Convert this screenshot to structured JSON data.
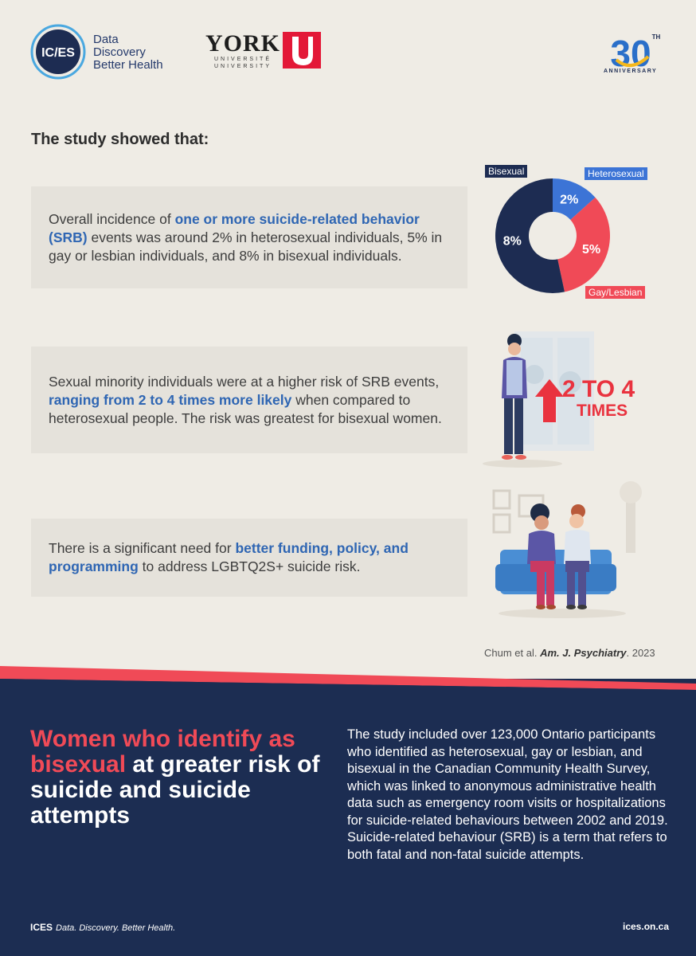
{
  "header": {
    "ices_badge": "IC/ES",
    "ices_tagline": [
      "Data",
      "Discovery",
      "Better Health"
    ],
    "york_word": "YORK",
    "york_sub": [
      "UNIVERSITÉ",
      "UNIVERSITY"
    ],
    "anniversary_number": "30",
    "anniversary_suffix": "TH",
    "anniversary_label": "ANNIVERSARY"
  },
  "study_title": "The study showed that:",
  "findings": [
    {
      "pre": "Overall incidence of ",
      "highlight": "one or more suicide-related behavior (SRB)",
      "post": " events was around 2% in heterosexual individuals, 5% in gay or lesbian individuals, and 8% in bisexual individuals."
    },
    {
      "pre": "Sexual minority individuals were at a higher risk of SRB events, ",
      "highlight": "ranging from 2 to 4 times more likely",
      "post": " when compared to heterosexual people. The risk was greatest for bisexual women."
    },
    {
      "pre": "There is a significant need for ",
      "highlight": "better funding, policy, and programming",
      "post": " to address LGBTQ2S+ suicide risk."
    }
  ],
  "chart_data": {
    "type": "pie",
    "categories": [
      "Heterosexual",
      "Gay/Lesbian",
      "Bisexual"
    ],
    "values": [
      2,
      5,
      8
    ],
    "value_labels": [
      "2%",
      "5%",
      "8%"
    ],
    "colors": [
      "#3c74d6",
      "#f04a57",
      "#1d2c52"
    ],
    "title": ""
  },
  "risk_callout": {
    "number": "2 TO 4",
    "word": "TIMES"
  },
  "citation": {
    "authors": "Chum et al. ",
    "journal": "Am. J. Psychiatry",
    "year": ". 2023"
  },
  "bottom": {
    "title_red": "Women who identify as bisexual",
    "title_white": " at greater risk of suicide and suicide attempts",
    "body": "The study included over 123,000 Ontario participants who identified as heterosexual, gay or lesbian, and bisexual in the Canadian Community Health Survey, which was linked to anonymous administrative health data such as emergency room visits or hospitalizations for suicide-related behaviours between 2002 and 2019. Suicide-related behaviour (SRB) is a term that refers to both fatal and non-fatal suicide attempts."
  },
  "footer": {
    "brand": "ICES",
    "tagline": "Data. Discovery. Better Health.",
    "url": "ices.on.ca"
  },
  "colors": {
    "navy": "#1c2d52",
    "red": "#f04a57",
    "blue": "#2f66b3",
    "background": "#efece5"
  }
}
